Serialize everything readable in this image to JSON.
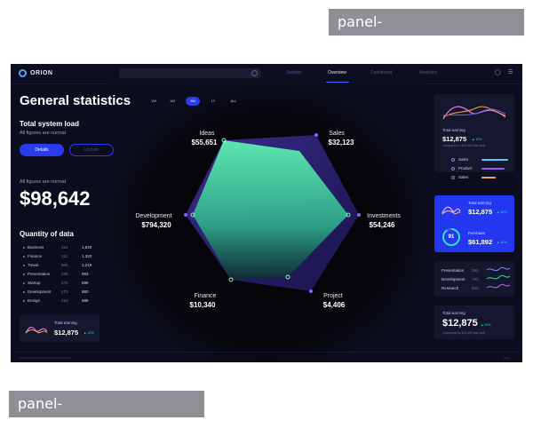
{
  "watermark": "panel-queenofbounty.com",
  "app": {
    "brand": "ORION",
    "nav": [
      "Statistic",
      "Overview",
      "Dashboard",
      "Analytics"
    ],
    "active_nav": "Overview"
  },
  "header": {
    "title": "General statistics",
    "periods": [
      "1W",
      "1M",
      "3M",
      "1Y",
      "ALL"
    ],
    "active_period": "3M"
  },
  "system_load": {
    "title": "Total system load",
    "subtitle": "All figures are normal",
    "details_label": "Details",
    "second_button_label": "Update",
    "figures_note": "All figures are normal",
    "big_value": "$98,642"
  },
  "quantity": {
    "title": "Quantity of data",
    "rows": [
      {
        "name": "Business",
        "v1": "324",
        "v2": "1,540"
      },
      {
        "name": "Finance",
        "v1": "311",
        "v2": "1,320"
      },
      {
        "name": "Travel",
        "v1": "500",
        "v2": "1,219"
      },
      {
        "name": "Presentation",
        "v1": "289",
        "v2": "993"
      },
      {
        "name": "Startup",
        "v1": "276",
        "v2": "896"
      },
      {
        "name": "Development",
        "v1": "273",
        "v2": "880"
      },
      {
        "name": "Design",
        "v1": "223",
        "v2": "686"
      }
    ]
  },
  "left_card": {
    "title": "Total earning",
    "value": "$12,875",
    "pct": "10%"
  },
  "radar": {
    "labels": [
      {
        "name": "Ideas",
        "value": "$55,651"
      },
      {
        "name": "Sales",
        "value": "$32,123"
      },
      {
        "name": "Investments",
        "value": "$54,246"
      },
      {
        "name": "Project",
        "value": "$4,406"
      },
      {
        "name": "Finance",
        "value": "$10,340"
      },
      {
        "name": "Development",
        "value": "$794,320"
      }
    ]
  },
  "right": {
    "earning1": {
      "title": "Total earning",
      "value": "$12,875",
      "pct": "10%",
      "note": "Compared to $21,490 last year"
    },
    "legend": [
      "Sales",
      "Product",
      "Sales"
    ],
    "blue": {
      "title": "Total earning",
      "value": "$12,875",
      "pct": "10%",
      "purchase_title": "Purchase",
      "purchase_value": "$61,892",
      "purchase_pct": "10%",
      "ring_value": "91"
    },
    "stats": [
      {
        "name": "Presentation",
        "v": "362"
      },
      {
        "name": "Development",
        "v": "753"
      },
      {
        "name": "Research",
        "v": "853"
      }
    ],
    "earning2": {
      "title": "Total earning",
      "value": "$12,875",
      "pct": "10%",
      "note": "Compared to $21,490 last year"
    }
  },
  "footer": {
    "left": "Orion Admin Kit Dashboard, Copyright 2019",
    "right": "Help"
  },
  "colors": {
    "bg": "#0c0d1e",
    "accent": "#2a3cf0",
    "teal": "#2fe0a0",
    "purple": "#6b4de0"
  }
}
